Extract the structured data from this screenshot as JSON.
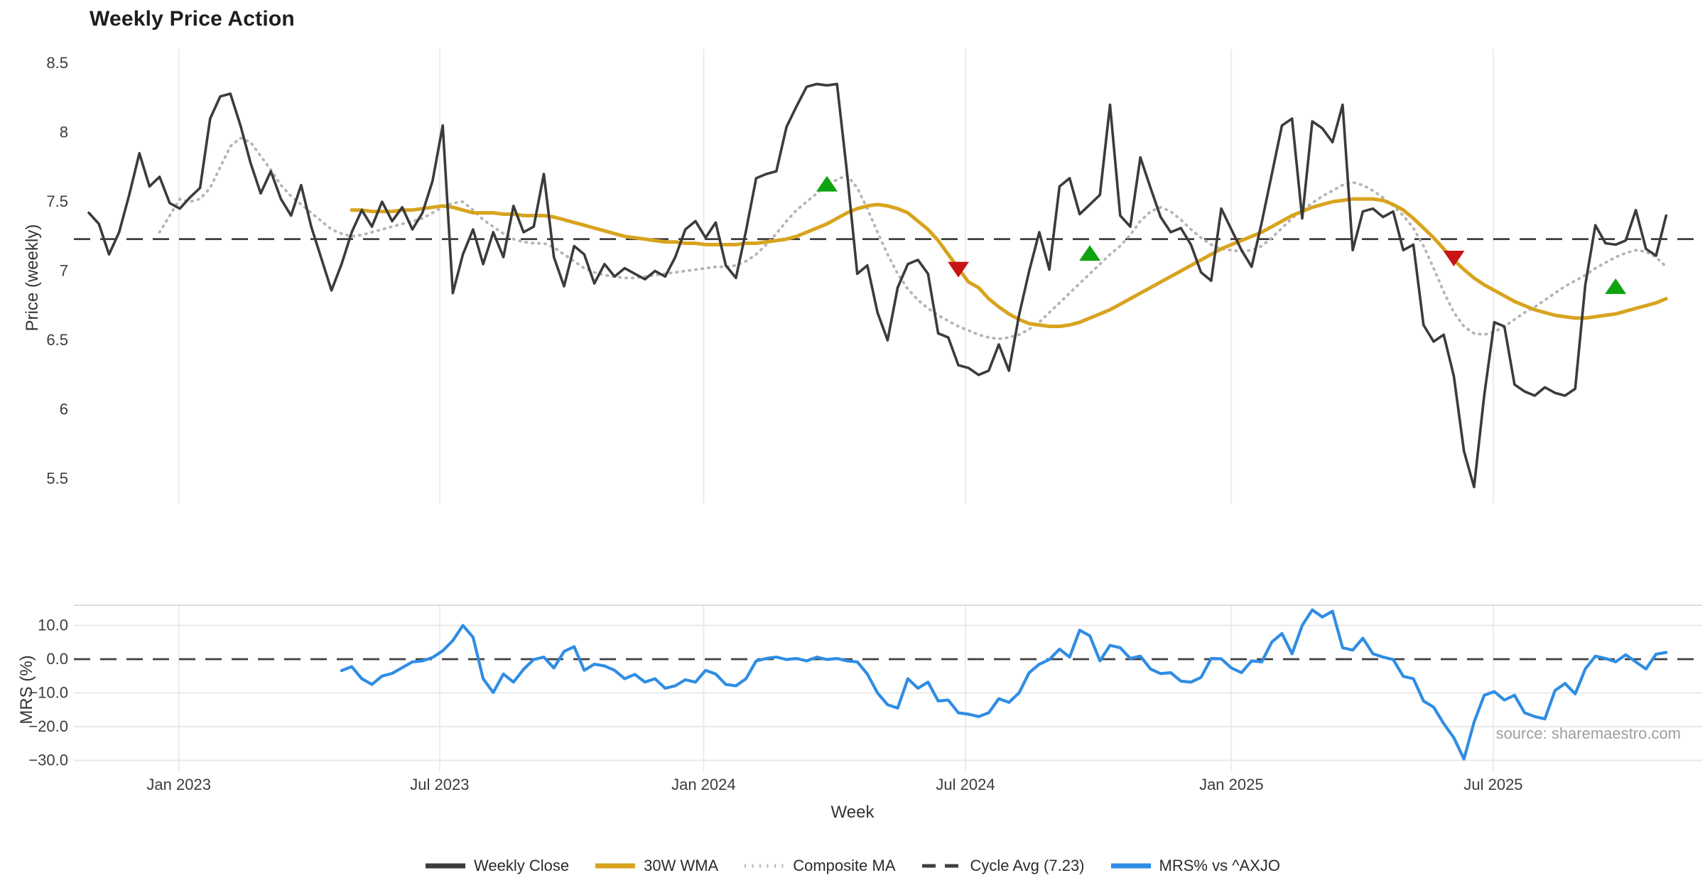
{
  "title": "Weekly Price Action",
  "source_note": "source: sharemaestro.com",
  "colors": {
    "close": "#3b3b3b",
    "wma": "#d8a41e",
    "composite": "#b5b5b5",
    "cycle_avg": "#3f3f3f",
    "mrs": "#2f8de4",
    "buy_marker": "#10a310",
    "sell_marker": "#c81414",
    "grid_vertical": "#ebebf0",
    "grid_horizontal": "#e9e9e9",
    "panel_spine": "#dcdcdc",
    "tick_text": "#3c3c3c"
  },
  "legend": {
    "items": [
      {
        "label": "Weekly Close",
        "style": "solid",
        "color": "#3b3b3b"
      },
      {
        "label": "30W WMA",
        "style": "solid",
        "color": "#d8a41e"
      },
      {
        "label": "Composite MA",
        "style": "dotted",
        "color": "#b5b5b5"
      },
      {
        "label": "Cycle Avg (7.23)",
        "style": "dashed",
        "color": "#3f3f3f"
      },
      {
        "label": "MRS% vs ^AXJO",
        "style": "solid",
        "color": "#2f8de4"
      }
    ]
  },
  "chart_data": [
    {
      "type": "line",
      "panel": "price",
      "title": "Weekly Price Action",
      "xlabel": "Week",
      "ylabel": "Price (weekly)",
      "x_unit": "weekly index, week 0 = 2022-10-31, 7 days per step",
      "xlim_weeks": [
        -1.5,
        159.6
      ],
      "ylim": [
        5.32,
        8.6
      ],
      "grid": "vertical-only",
      "y_ticks": [
        {
          "label": "8.5",
          "value": 8.5
        },
        {
          "label": "8",
          "value": 8.0
        },
        {
          "label": "7.5",
          "value": 7.5
        },
        {
          "label": "7",
          "value": 7.0
        },
        {
          "label": "6.5",
          "value": 6.5
        },
        {
          "label": "6",
          "value": 6.0
        },
        {
          "label": "5.5",
          "value": 5.5
        }
      ],
      "x_ticks": [
        {
          "label": "Jan 2023",
          "week": 8.9
        },
        {
          "label": "Jul 2023",
          "week": 34.7
        },
        {
          "label": "Jan 2024",
          "week": 60.8
        },
        {
          "label": "Jul 2024",
          "week": 86.7
        },
        {
          "label": "Jan 2025",
          "week": 113.0
        },
        {
          "label": "Jul 2025",
          "week": 138.9
        }
      ],
      "cycle_avg_value": 7.23,
      "series": [
        {
          "name": "Weekly Close",
          "style": "solid",
          "width": 3.6,
          "color": "#3b3b3b",
          "start_week": 0,
          "values": [
            7.42,
            7.34,
            7.12,
            7.28,
            7.55,
            7.85,
            7.61,
            7.68,
            7.49,
            7.45,
            7.53,
            7.6,
            8.1,
            8.26,
            8.28,
            8.05,
            7.78,
            7.56,
            7.72,
            7.52,
            7.4,
            7.62,
            7.32,
            7.09,
            6.86,
            7.05,
            7.28,
            7.44,
            7.32,
            7.5,
            7.36,
            7.46,
            7.3,
            7.42,
            7.65,
            8.05,
            6.84,
            7.12,
            7.3,
            7.05,
            7.28,
            7.1,
            7.47,
            7.28,
            7.32,
            7.7,
            7.1,
            6.89,
            7.18,
            7.12,
            6.91,
            7.05,
            6.96,
            7.02,
            6.98,
            6.94,
            7.0,
            6.96,
            7.1,
            7.3,
            7.36,
            7.24,
            7.35,
            7.04,
            6.95,
            7.29,
            7.67,
            7.7,
            7.72,
            8.04,
            8.19,
            8.33,
            8.35,
            8.34,
            8.35,
            7.7,
            6.98,
            7.04,
            6.7,
            6.5,
            6.88,
            7.05,
            7.08,
            6.98,
            6.55,
            6.52,
            6.32,
            6.3,
            6.25,
            6.28,
            6.47,
            6.28,
            6.68,
            7.0,
            7.28,
            7.01,
            7.61,
            7.67,
            7.41,
            7.48,
            7.55,
            8.2,
            7.4,
            7.32,
            7.82,
            7.6,
            7.39,
            7.28,
            7.31,
            7.19,
            6.99,
            6.93,
            7.45,
            7.3,
            7.15,
            7.03,
            7.35,
            7.7,
            8.05,
            8.1,
            7.38,
            8.08,
            8.03,
            7.93,
            8.2,
            7.15,
            7.43,
            7.45,
            7.39,
            7.43,
            7.15,
            7.19,
            6.61,
            6.49,
            6.54,
            6.24,
            5.7,
            5.44,
            6.1,
            6.63,
            6.6,
            6.18,
            6.13,
            6.1,
            6.16,
            6.12,
            6.1,
            6.15,
            6.9,
            7.33,
            7.2,
            7.19,
            7.22,
            7.44,
            7.16,
            7.11,
            7.4
          ]
        },
        {
          "name": "30W WMA",
          "style": "solid",
          "width": 5,
          "color": "#d8a41e",
          "start_week": 26,
          "values": [
            7.44,
            7.44,
            7.43,
            7.43,
            7.43,
            7.44,
            7.44,
            7.45,
            7.46,
            7.47,
            7.46,
            7.44,
            7.42,
            7.42,
            7.42,
            7.41,
            7.41,
            7.4,
            7.4,
            7.4,
            7.39,
            7.37,
            7.35,
            7.33,
            7.31,
            7.29,
            7.27,
            7.25,
            7.24,
            7.23,
            7.22,
            7.21,
            7.21,
            7.2,
            7.2,
            7.19,
            7.19,
            7.19,
            7.19,
            7.2,
            7.2,
            7.21,
            7.22,
            7.23,
            7.25,
            7.28,
            7.31,
            7.34,
            7.38,
            7.42,
            7.45,
            7.47,
            7.48,
            7.47,
            7.45,
            7.42,
            7.36,
            7.3,
            7.22,
            7.12,
            7.02,
            6.92,
            6.88,
            6.8,
            6.74,
            6.69,
            6.65,
            6.62,
            6.61,
            6.6,
            6.6,
            6.61,
            6.63,
            6.66,
            6.69,
            6.72,
            6.76,
            6.8,
            6.84,
            6.88,
            6.92,
            6.96,
            7.0,
            7.04,
            7.08,
            7.12,
            7.16,
            7.19,
            7.22,
            7.25,
            7.28,
            7.32,
            7.36,
            7.4,
            7.43,
            7.46,
            7.48,
            7.5,
            7.51,
            7.52,
            7.52,
            7.52,
            7.51,
            7.48,
            7.44,
            7.38,
            7.31,
            7.24,
            7.16,
            7.08,
            7.01,
            6.95,
            6.9,
            6.86,
            6.82,
            6.78,
            6.75,
            6.72,
            6.7,
            6.68,
            6.67,
            6.66,
            6.66,
            6.67,
            6.68,
            6.69,
            6.71,
            6.73,
            6.75,
            6.77,
            6.8
          ]
        },
        {
          "name": "Composite MA",
          "style": "dotted",
          "width": 3.8,
          "color": "#b5b5b5",
          "start_week": 7,
          "values": [
            7.28,
            7.4,
            7.52,
            7.5,
            7.52,
            7.6,
            7.75,
            7.9,
            7.96,
            7.93,
            7.83,
            7.73,
            7.62,
            7.54,
            7.48,
            7.42,
            7.36,
            7.3,
            7.27,
            7.25,
            7.26,
            7.28,
            7.3,
            7.32,
            7.34,
            7.36,
            7.38,
            7.42,
            7.46,
            7.49,
            7.5,
            7.44,
            7.37,
            7.32,
            7.27,
            7.23,
            7.21,
            7.2,
            7.2,
            7.17,
            7.12,
            7.07,
            7.02,
            6.99,
            6.97,
            6.96,
            6.95,
            6.95,
            6.96,
            6.97,
            6.98,
            6.99,
            7.0,
            7.01,
            7.02,
            7.03,
            7.03,
            7.04,
            7.07,
            7.12,
            7.19,
            7.27,
            7.36,
            7.44,
            7.5,
            7.56,
            7.62,
            7.66,
            7.69,
            7.6,
            7.45,
            7.28,
            7.12,
            6.98,
            6.87,
            6.79,
            6.73,
            6.68,
            6.64,
            6.6,
            6.57,
            6.54,
            6.52,
            6.51,
            6.52,
            6.54,
            6.58,
            6.63,
            6.7,
            6.77,
            6.84,
            6.91,
            6.98,
            7.05,
            7.12,
            7.18,
            7.26,
            7.36,
            7.43,
            7.46,
            7.43,
            7.37,
            7.3,
            7.24,
            7.19,
            7.16,
            7.15,
            7.14,
            7.15,
            7.18,
            7.24,
            7.31,
            7.38,
            7.44,
            7.49,
            7.54,
            7.58,
            7.62,
            7.64,
            7.62,
            7.58,
            7.53,
            7.47,
            7.4,
            7.31,
            7.18,
            7.02,
            6.85,
            6.7,
            6.6,
            6.55,
            6.54,
            6.56,
            6.6,
            6.65,
            6.7,
            6.74,
            6.79,
            6.84,
            6.89,
            6.93,
            6.97,
            7.02,
            7.06,
            7.1,
            7.13,
            7.15,
            7.14,
            7.1,
            7.03
          ]
        }
      ],
      "markers": {
        "buy": [
          {
            "week": 73,
            "price": 7.62
          },
          {
            "week": 99,
            "price": 7.12
          },
          {
            "week": 151,
            "price": 6.88
          }
        ],
        "sell": [
          {
            "week": 86,
            "price": 7.02
          },
          {
            "week": 135,
            "price": 7.1
          }
        ]
      }
    },
    {
      "type": "line",
      "panel": "mrs",
      "ylabel": "MRS (%)",
      "ylim": [
        -33,
        16
      ],
      "zero_line": 0,
      "grid": "both",
      "y_ticks": [
        {
          "label": "10.0",
          "value": 10
        },
        {
          "label": "0.0",
          "value": 0
        },
        {
          "label": "−10.0",
          "value": -10
        },
        {
          "label": "−20.0",
          "value": -20
        },
        {
          "label": "−30.0",
          "value": -30
        }
      ],
      "series": [
        {
          "name": "MRS% vs ^AXJO",
          "style": "solid",
          "width": 4.2,
          "color": "#2f8de4",
          "start_week": 25,
          "values": [
            -3.4,
            -2.2,
            -5.8,
            -7.5,
            -5.0,
            -4.2,
            -2.5,
            -0.8,
            -0.5,
            0.5,
            2.5,
            5.5,
            10.0,
            6.5,
            -5.8,
            -9.9,
            -4.4,
            -6.8,
            -3.0,
            -0.1,
            0.6,
            -2.6,
            2.3,
            3.7,
            -3.3,
            -1.5,
            -2.0,
            -3.3,
            -5.8,
            -4.5,
            -6.8,
            -5.8,
            -8.6,
            -7.9,
            -6.1,
            -6.8,
            -3.3,
            -4.4,
            -7.5,
            -7.9,
            -5.8,
            -0.5,
            0.2,
            0.6,
            -0.1,
            0.2,
            -0.5,
            0.6,
            -0.1,
            0.2,
            -0.5,
            -0.8,
            -4.4,
            -10.0,
            -13.5,
            -14.5,
            -5.8,
            -8.6,
            -6.8,
            -12.4,
            -12.1,
            -15.9,
            -16.3,
            -17.0,
            -15.9,
            -11.7,
            -12.8,
            -10.0,
            -4.0,
            -1.5,
            -0.1,
            3.0,
            0.6,
            8.6,
            6.9,
            -0.5,
            4.1,
            3.4,
            0.2,
            0.9,
            -2.9,
            -4.3,
            -4.0,
            -6.5,
            -6.8,
            -5.4,
            0.2,
            0.1,
            -2.6,
            -4.0,
            -0.5,
            -0.8,
            5.1,
            7.6,
            1.6,
            10.0,
            14.6,
            12.5,
            14.2,
            3.4,
            2.7,
            6.2,
            1.6,
            0.6,
            -0.1,
            -5.1,
            -5.8,
            -12.4,
            -14.2,
            -19.1,
            -23.3,
            -29.6,
            -18.7,
            -10.7,
            -9.6,
            -12.1,
            -10.7,
            -15.9,
            -17.0,
            -17.7,
            -9.3,
            -7.2,
            -10.3,
            -2.9,
            0.9,
            0.2,
            -0.8,
            1.3,
            -0.8,
            -2.9,
            1.5,
            2.0
          ]
        }
      ]
    }
  ]
}
